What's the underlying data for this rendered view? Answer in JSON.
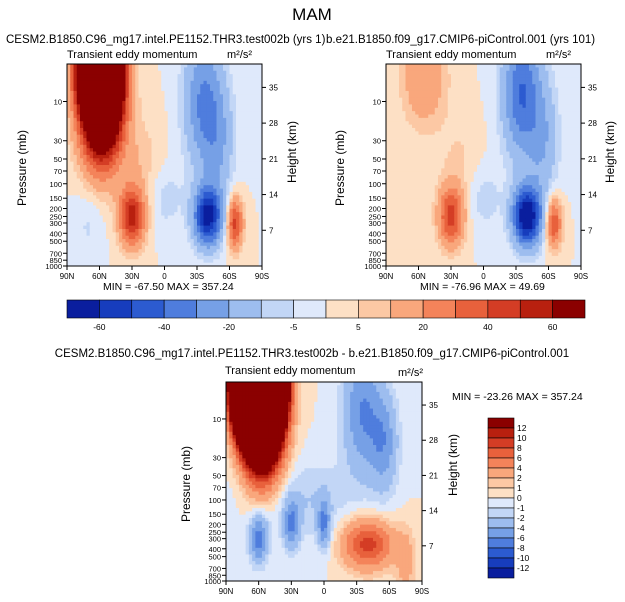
{
  "page_title": "MAM",
  "colors": {
    "pos": [
      "#fde0c5",
      "#fcc8a4",
      "#f9a77c",
      "#f4835a",
      "#e8613c",
      "#d43d25",
      "#b8200f",
      "#8b0000"
    ],
    "neg": [
      "#dfe9fb",
      "#c2d6f6",
      "#9dbdef",
      "#76a0e6",
      "#4f7ddd",
      "#2c5bd0",
      "#173dbd",
      "#0a1e9e"
    ],
    "zero": "#f8f4ee"
  },
  "chart_data": [
    {
      "type": "heatmap",
      "title_left": "CESM2.B1850.C96_mg17.intel.PE1152.THR3.test002b (yrs 1)",
      "subtitle": "Transient eddy momentum",
      "units": "m²/s²",
      "xlabel": "",
      "ylabel": "Pressure (mb)",
      "ylabel_right": "Height (km)",
      "x_ticks": [
        "90N",
        "60N",
        "30N",
        "0",
        "30S",
        "60S",
        "90S"
      ],
      "y_ticks": [
        "10",
        "30",
        "50",
        "70",
        "100",
        "150",
        "200",
        "250",
        "300",
        "400",
        "500",
        "700",
        "850",
        "1000"
      ],
      "height_ticks": [
        "35",
        "28",
        "21",
        "14",
        "7"
      ],
      "stats": "MIN = -67.50   MAX = 357.24",
      "ylim": [
        1000,
        3.5
      ],
      "xlim": [
        90,
        -90
      ],
      "blobs": [
        {
          "lat": 60,
          "p": 3.5,
          "amp": 340,
          "sx": 11,
          "sy": 1.0
        },
        {
          "lat": 58,
          "p": 10,
          "amp": 140,
          "sx": 13,
          "sy": 1.4
        },
        {
          "lat": 30,
          "p": 250,
          "amp": 55,
          "sx": 8,
          "sy": 0.7
        },
        {
          "lat": 22,
          "p": 60,
          "amp": 8,
          "sx": 14,
          "sy": 1.2
        },
        {
          "lat": -40,
          "p": 250,
          "amp": -65,
          "sx": 9,
          "sy": 0.7
        },
        {
          "lat": -35,
          "p": 10,
          "amp": -30,
          "sx": 12,
          "sy": 1.6
        },
        {
          "lat": -50,
          "p": 30,
          "amp": -18,
          "sx": 10,
          "sy": 1.5
        },
        {
          "lat": -65,
          "p": 300,
          "amp": 45,
          "sx": 5,
          "sy": 0.6
        },
        {
          "lat": 0,
          "p": 150,
          "amp": -8,
          "sx": 12,
          "sy": 0.8
        },
        {
          "lat": 70,
          "p": 300,
          "amp": -6,
          "sx": 10,
          "sy": 0.9
        }
      ]
    },
    {
      "type": "heatmap",
      "title_left": "b.e21.B1850.f09_g17.CMIP6-piControl.001 (yrs 101)",
      "subtitle": "Transient eddy momentum",
      "units": "m²/s²",
      "xlabel": "",
      "ylabel": "Pressure (mb)",
      "ylabel_right": "Height (km)",
      "x_ticks": [
        "90N",
        "60N",
        "30N",
        "0",
        "30S",
        "60S",
        "90S"
      ],
      "y_ticks": [
        "10",
        "30",
        "50",
        "70",
        "100",
        "150",
        "200",
        "250",
        "300",
        "400",
        "500",
        "700",
        "850",
        "1000"
      ],
      "height_ticks": [
        "35",
        "28",
        "21",
        "14",
        "7"
      ],
      "stats": "MIN = -76.96   MAX = 49.69",
      "ylim": [
        1000,
        3.5
      ],
      "xlim": [
        90,
        -90
      ],
      "blobs": [
        {
          "lat": 55,
          "p": 5,
          "amp": 20,
          "sx": 14,
          "sy": 1.2
        },
        {
          "lat": 30,
          "p": 250,
          "amp": 45,
          "sx": 8,
          "sy": 0.7
        },
        {
          "lat": 22,
          "p": 60,
          "amp": 6,
          "sx": 14,
          "sy": 1.2
        },
        {
          "lat": -40,
          "p": 250,
          "amp": -75,
          "sx": 9,
          "sy": 0.7
        },
        {
          "lat": -35,
          "p": 8,
          "amp": -40,
          "sx": 12,
          "sy": 1.5
        },
        {
          "lat": -55,
          "p": 30,
          "amp": -18,
          "sx": 10,
          "sy": 1.5
        },
        {
          "lat": -65,
          "p": 300,
          "amp": 40,
          "sx": 5,
          "sy": 0.6
        },
        {
          "lat": 0,
          "p": 150,
          "amp": -8,
          "sx": 12,
          "sy": 0.8
        }
      ]
    },
    {
      "type": "heatmap",
      "title": "CESM2.B1850.C96_mg17.intel.PE1152.THR3.test002b - b.e21.B1850.f09_g17.CMIP6-piControl.001",
      "subtitle": "Transient eddy momentum",
      "units": "m²/s²",
      "xlabel": "",
      "ylabel": "Pressure (mb)",
      "ylabel_right": "Height (km)",
      "x_ticks": [
        "90N",
        "60N",
        "30N",
        "0",
        "30S",
        "60S",
        "90S"
      ],
      "y_ticks": [
        "10",
        "30",
        "50",
        "70",
        "100",
        "150",
        "200",
        "250",
        "300",
        "400",
        "500",
        "700",
        "850",
        "1000"
      ],
      "height_ticks": [
        "35",
        "28",
        "21",
        "14",
        "7"
      ],
      "stats": "MIN = -23.26   MAX = 357.24",
      "ylim": [
        1000,
        3.5
      ],
      "xlim": [
        90,
        -90
      ],
      "blobs": [
        {
          "lat": 60,
          "p": 3.5,
          "amp": 330,
          "sx": 11,
          "sy": 1.0
        },
        {
          "lat": 58,
          "p": 12,
          "amp": 30,
          "sx": 13,
          "sy": 1.3
        },
        {
          "lat": -40,
          "p": 350,
          "amp": 9,
          "sx": 16,
          "sy": 0.6
        },
        {
          "lat": -35,
          "p": 8,
          "amp": -6,
          "sx": 12,
          "sy": 1.5
        },
        {
          "lat": -55,
          "p": 20,
          "amp": -5,
          "sx": 9,
          "sy": 1.2
        },
        {
          "lat": 60,
          "p": 300,
          "amp": -7,
          "sx": 6,
          "sy": 0.6
        },
        {
          "lat": 30,
          "p": 200,
          "amp": -6,
          "sx": 5,
          "sy": 0.6
        },
        {
          "lat": 0,
          "p": 200,
          "amp": -6,
          "sx": 4,
          "sy": 0.6
        },
        {
          "lat": 15,
          "p": 100,
          "amp": -2,
          "sx": 30,
          "sy": 1.0
        },
        {
          "lat": 70,
          "p": 40,
          "amp": -1.5,
          "sx": 14,
          "sy": 1.0
        },
        {
          "lat": -75,
          "p": 600,
          "amp": 3,
          "sx": 6,
          "sy": 0.8
        }
      ]
    }
  ],
  "colorbar_top": {
    "orientation": "horizontal",
    "labels": [
      "-60",
      "-40",
      "-20",
      "-5",
      "5",
      "20",
      "40",
      "60"
    ],
    "levels": [
      -60,
      -50,
      -40,
      -30,
      -20,
      -10,
      -5,
      0,
      5,
      10,
      20,
      30,
      40,
      50,
      60
    ]
  },
  "colorbar_diff": {
    "orientation": "vertical",
    "labels": [
      "12",
      "10",
      "8",
      "6",
      "4",
      "2",
      "1",
      "0",
      "-1",
      "-2",
      "-4",
      "-6",
      "-8",
      "-10",
      "-12"
    ],
    "levels": [
      -12,
      -10,
      -8,
      -6,
      -4,
      -2,
      -1,
      0,
      1,
      2,
      4,
      6,
      8,
      10,
      12
    ]
  }
}
